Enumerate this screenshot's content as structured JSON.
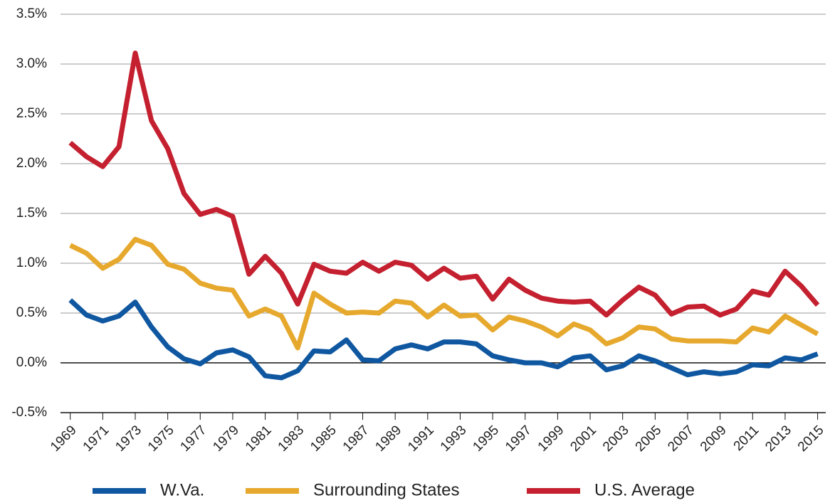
{
  "chart_data": {
    "type": "line",
    "x": [
      1969,
      1970,
      1971,
      1972,
      1973,
      1974,
      1975,
      1976,
      1977,
      1978,
      1979,
      1980,
      1981,
      1982,
      1983,
      1984,
      1985,
      1986,
      1987,
      1988,
      1989,
      1990,
      1991,
      1992,
      1993,
      1994,
      1995,
      1996,
      1997,
      1998,
      1999,
      2000,
      2001,
      2002,
      2003,
      2004,
      2005,
      2006,
      2007,
      2008,
      2009,
      2010,
      2011,
      2012,
      2013,
      2014,
      2015
    ],
    "series": [
      {
        "name": "W.Va.",
        "color": "#0f57a0",
        "values": [
          0.63,
          0.48,
          0.42,
          0.47,
          0.61,
          0.36,
          0.16,
          0.04,
          -0.01,
          0.1,
          0.13,
          0.06,
          -0.13,
          -0.15,
          -0.08,
          0.12,
          0.11,
          0.23,
          0.03,
          0.02,
          0.14,
          0.18,
          0.14,
          0.21,
          0.21,
          0.19,
          0.07,
          0.03,
          0.0,
          0.0,
          -0.04,
          0.05,
          0.07,
          -0.07,
          -0.03,
          0.07,
          0.02,
          -0.05,
          -0.12,
          -0.09,
          -0.11,
          -0.09,
          -0.02,
          -0.03,
          0.05,
          0.03,
          0.09
        ]
      },
      {
        "name": "Surrounding States",
        "color": "#e6a92e",
        "values": [
          1.18,
          1.1,
          0.95,
          1.04,
          1.24,
          1.18,
          0.99,
          0.94,
          0.8,
          0.75,
          0.73,
          0.47,
          0.54,
          0.47,
          0.15,
          0.7,
          0.59,
          0.5,
          0.51,
          0.5,
          0.62,
          0.6,
          0.46,
          0.58,
          0.47,
          0.48,
          0.33,
          0.46,
          0.42,
          0.36,
          0.27,
          0.39,
          0.33,
          0.19,
          0.25,
          0.36,
          0.34,
          0.24,
          0.22,
          0.22,
          0.22,
          0.21,
          0.35,
          0.31,
          0.47,
          0.38,
          0.29
        ]
      },
      {
        "name": "U.S. Average",
        "color": "#c4202f",
        "values": [
          2.21,
          2.07,
          1.97,
          2.17,
          3.11,
          2.43,
          2.15,
          1.7,
          1.49,
          1.54,
          1.47,
          0.89,
          1.07,
          0.9,
          0.59,
          0.99,
          0.92,
          0.9,
          1.01,
          0.92,
          1.01,
          0.98,
          0.84,
          0.95,
          0.85,
          0.87,
          0.64,
          0.84,
          0.73,
          0.65,
          0.62,
          0.61,
          0.62,
          0.48,
          0.63,
          0.76,
          0.68,
          0.49,
          0.56,
          0.57,
          0.48,
          0.54,
          0.72,
          0.68,
          0.92,
          0.77,
          0.58
        ]
      }
    ],
    "xlim": [
      1968.4,
      2015.5
    ],
    "xticks": [
      1969,
      1971,
      1973,
      1975,
      1977,
      1979,
      1981,
      1983,
      1985,
      1987,
      1989,
      1991,
      1993,
      1995,
      1997,
      1999,
      2001,
      2003,
      2005,
      2007,
      2009,
      2011,
      2013,
      2015
    ],
    "ylim": [
      -0.5,
      3.5
    ],
    "yticks": [
      {
        "value": -0.5,
        "label": "-0.5%"
      },
      {
        "value": 0,
        "label": "0.0%"
      },
      {
        "value": 0.5,
        "label": "0.5%"
      },
      {
        "value": 1,
        "label": "1.0%"
      },
      {
        "value": 1.5,
        "label": "1.5%"
      },
      {
        "value": 2,
        "label": "2.0%"
      },
      {
        "value": 2.5,
        "label": "2.5%"
      },
      {
        "value": 3,
        "label": "3.0%"
      },
      {
        "value": 3.5,
        "label": "3.5%"
      }
    ],
    "grid": true,
    "legend": "bottom"
  }
}
